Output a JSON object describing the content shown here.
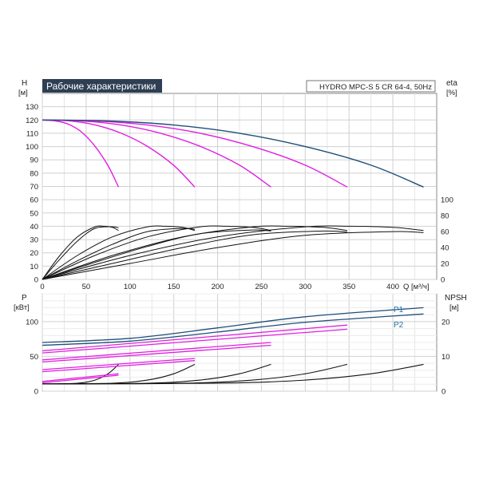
{
  "chart_data": [
    {
      "type": "line",
      "title": "Рабочие характеристики",
      "subtitle": "HYDRO MPC-S 5 CR 64-4, 50Hz",
      "xlabel": "Q [м³/ч]",
      "ylabel_line1": "H",
      "ylabel_line2": "[м]",
      "ylabel_right_line1": "eta",
      "ylabel_right_line2": "[%]",
      "xlim": [
        0,
        450
      ],
      "ylim": [
        0,
        140
      ],
      "ylim_right": [
        0,
        100
      ],
      "x_ticks": [
        0,
        50,
        100,
        150,
        200,
        250,
        300,
        350,
        400
      ],
      "y_ticks": [
        0,
        10,
        20,
        30,
        40,
        50,
        60,
        70,
        80,
        90,
        100,
        110,
        120,
        130
      ],
      "y_ticks_right": [
        0,
        20,
        40,
        60,
        80,
        100
      ],
      "grid": true,
      "head_curves": [
        {
          "pumps": 1,
          "color": "#e020e0",
          "x": [
            0,
            15,
            30,
            45,
            60,
            75,
            87
          ],
          "y": [
            120,
            119.3,
            116.8,
            110.8,
            100.3,
            85.6,
            69.5
          ]
        },
        {
          "pumps": 2,
          "color": "#e020e0",
          "x": [
            0,
            30,
            60,
            90,
            120,
            150,
            174
          ],
          "y": [
            120,
            119.4,
            116.3,
            110,
            100.1,
            85.8,
            69.5
          ]
        },
        {
          "pumps": 3,
          "color": "#e020e0",
          "x": [
            0,
            45,
            90,
            135,
            180,
            225,
            261
          ],
          "y": [
            120,
            119.3,
            116.2,
            110,
            100.2,
            86,
            69.5
          ]
        },
        {
          "pumps": 4,
          "color": "#e020e0",
          "x": [
            0,
            60,
            120,
            180,
            240,
            300,
            348
          ],
          "y": [
            120,
            119.3,
            116.2,
            110,
            100,
            86,
            69.5
          ]
        },
        {
          "pumps": 5,
          "color": "#1f4e79",
          "x": [
            0,
            75,
            150,
            225,
            300,
            375,
            435
          ],
          "y": [
            120,
            119.3,
            116.2,
            110,
            100,
            86,
            69.5
          ]
        }
      ],
      "eta_curves": [
        {
          "x": [
            0,
            20,
            40,
            60,
            70,
            80,
            87
          ],
          "y": [
            0,
            45,
            80,
            99,
            100,
            98,
            92
          ]
        },
        {
          "x": [
            0,
            20,
            40,
            60,
            80,
            87
          ],
          "y": [
            0,
            38,
            72,
            96,
            99,
            97
          ]
        },
        {
          "x": [
            0,
            40,
            80,
            120,
            140,
            160,
            174
          ],
          "y": [
            0,
            45,
            80,
            99,
            100,
            98,
            92
          ]
        },
        {
          "x": [
            0,
            40,
            80,
            120,
            160,
            174
          ],
          "y": [
            0,
            35,
            66,
            90,
            96,
            94
          ]
        },
        {
          "x": [
            0,
            60,
            120,
            180,
            210,
            240,
            261
          ],
          "y": [
            0,
            45,
            80,
            99,
            100,
            98,
            92
          ]
        },
        {
          "x": [
            0,
            60,
            120,
            180,
            240,
            261
          ],
          "y": [
            0,
            32,
            62,
            86,
            93,
            91
          ]
        },
        {
          "x": [
            0,
            80,
            160,
            240,
            280,
            320,
            348
          ],
          "y": [
            0,
            45,
            80,
            99,
            100,
            98,
            92
          ]
        },
        {
          "x": [
            0,
            80,
            160,
            240,
            320,
            348
          ],
          "y": [
            0,
            30,
            60,
            84,
            91,
            89
          ]
        },
        {
          "x": [
            0,
            100,
            200,
            300,
            350,
            400,
            435
          ],
          "y": [
            0,
            45,
            80,
            99,
            100,
            98,
            92
          ]
        },
        {
          "x": [
            0,
            100,
            200,
            300,
            400,
            435
          ],
          "y": [
            0,
            30,
            60,
            83,
            90,
            88
          ]
        }
      ]
    },
    {
      "type": "line",
      "ylabel_line1": "P",
      "ylabel_line2": "[кВт]",
      "ylabel_right_line1": "NPSH",
      "ylabel_right_line2": "[м]",
      "xlim": [
        0,
        450
      ],
      "ylim": [
        0,
        140
      ],
      "ylim_right": [
        0,
        28
      ],
      "y_ticks": [
        0,
        50,
        100
      ],
      "y_ticks_right": [
        0,
        10,
        20
      ],
      "grid": true,
      "series_labels": [
        "P1",
        "P2"
      ],
      "power_curves": [
        {
          "label": "P1",
          "color": "#1f4e79",
          "x": [
            0,
            100,
            200,
            300,
            435
          ],
          "y": [
            70,
            76,
            91,
            107,
            120
          ]
        },
        {
          "label": "P2",
          "color": "#1f4e79",
          "x": [
            0,
            100,
            200,
            300,
            435
          ],
          "y": [
            66,
            72,
            85,
            99,
            111
          ]
        },
        {
          "color": "#e020e0",
          "x": [
            0,
            87
          ],
          "y": [
            12,
            23
          ]
        },
        {
          "color": "#e020e0",
          "x": [
            0,
            87
          ],
          "y": [
            14,
            25
          ]
        },
        {
          "color": "#e020e0",
          "x": [
            0,
            174
          ],
          "y": [
            28,
            44
          ]
        },
        {
          "color": "#e020e0",
          "x": [
            0,
            174
          ],
          "y": [
            31,
            47
          ]
        },
        {
          "color": "#e020e0",
          "x": [
            0,
            261
          ],
          "y": [
            42,
            66
          ]
        },
        {
          "color": "#e020e0",
          "x": [
            0,
            261
          ],
          "y": [
            45,
            70
          ]
        },
        {
          "color": "#e020e0",
          "x": [
            0,
            348
          ],
          "y": [
            55,
            89
          ]
        },
        {
          "color": "#e020e0",
          "x": [
            0,
            348
          ],
          "y": [
            58,
            95
          ]
        }
      ],
      "npsh_curves": [
        {
          "x": [
            0,
            40,
            60,
            75,
            87
          ],
          "y": [
            2.1,
            2.3,
            3.2,
            5,
            7.7
          ]
        },
        {
          "x": [
            0,
            80,
            120,
            150,
            174
          ],
          "y": [
            2.1,
            2.3,
            3.2,
            5,
            7.7
          ]
        },
        {
          "x": [
            0,
            120,
            180,
            225,
            261
          ],
          "y": [
            2.1,
            2.3,
            3.2,
            5,
            7.7
          ]
        },
        {
          "x": [
            0,
            160,
            240,
            300,
            348
          ],
          "y": [
            2.1,
            2.3,
            3.2,
            5,
            7.7
          ]
        },
        {
          "x": [
            0,
            200,
            300,
            375,
            435
          ],
          "y": [
            2.1,
            2.3,
            3.2,
            5,
            7.7
          ]
        }
      ]
    }
  ]
}
